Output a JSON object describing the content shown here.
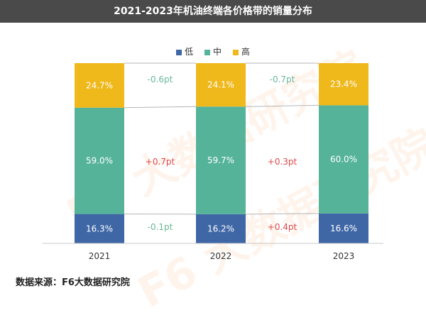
{
  "title": "2021-2023年机油终端各价格带的销量分布",
  "source": "数据来源：F6大数据研究院",
  "legend": [
    {
      "name": "低",
      "color": "#3f67a6"
    },
    {
      "name": "中",
      "color": "#55b39a"
    },
    {
      "name": "高",
      "color": "#efb81b"
    }
  ],
  "watermark": "F6 大数据研究院",
  "chart_data": {
    "type": "bar",
    "stacked": true,
    "categories": [
      "2021",
      "2022",
      "2023"
    ],
    "series": [
      {
        "name": "低",
        "values": [
          16.3,
          16.2,
          16.6
        ],
        "labels": [
          "16.3%",
          "16.2%",
          "16.6%"
        ],
        "color": "#3f67a6"
      },
      {
        "name": "中",
        "values": [
          59.0,
          59.7,
          60.0
        ],
        "labels": [
          "59.0%",
          "59.7%",
          "60.0%"
        ],
        "color": "#55b39a"
      },
      {
        "name": "高",
        "values": [
          24.7,
          24.1,
          23.4
        ],
        "labels": [
          "24.7%",
          "24.1%",
          "23.4%"
        ],
        "color": "#efb81b"
      }
    ],
    "changes": [
      {
        "series": "高",
        "labels": [
          "-0.6pt",
          "-0.7pt"
        ],
        "color": "#6ab89a"
      },
      {
        "series": "中",
        "labels": [
          "+0.7pt",
          "+0.3pt"
        ],
        "color": "#e0484a"
      },
      {
        "series": "低",
        "labels": [
          "-0.1pt",
          "+0.4pt"
        ],
        "colors": [
          "#6ab89a",
          "#e0484a"
        ]
      }
    ],
    "ylim": [
      0,
      100
    ],
    "grid": false,
    "legend_position": "top"
  }
}
